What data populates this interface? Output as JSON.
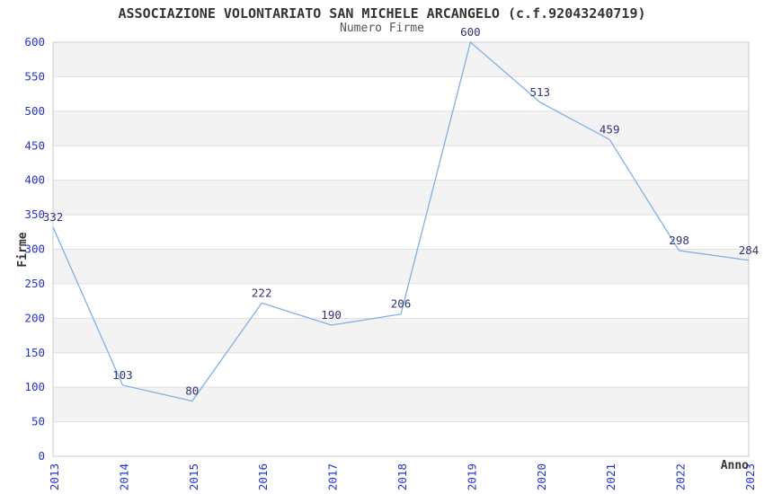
{
  "header": {
    "title": "ASSOCIAZIONE VOLONTARIATO SAN MICHELE ARCANGELO (c.f.92043240719)",
    "subtitle": "Numero Firme"
  },
  "chart_data": {
    "type": "line",
    "title": "ASSOCIAZIONE VOLONTARIATO SAN MICHELE ARCANGELO (c.f.92043240719)",
    "subtitle": "Numero Firme",
    "xlabel": "Anno",
    "ylabel": "Firme",
    "categories": [
      "2013",
      "2014",
      "2015",
      "2016",
      "2017",
      "2018",
      "2019",
      "2020",
      "2021",
      "2022",
      "2023"
    ],
    "values": [
      332,
      103,
      80,
      222,
      190,
      206,
      600,
      513,
      459,
      298,
      284
    ],
    "ylim": [
      0,
      600
    ],
    "ytick_step": 50,
    "grid": true,
    "legend": false,
    "point_labels": true,
    "x_tick_rotation": 90,
    "colors": {
      "line": "#7fb0e5",
      "tick_label": "#2233cc",
      "data_label": "#333377",
      "band_alt": "#f3f3f3",
      "band": "#ffffff",
      "grid": "#e0e0e0",
      "border": "#c9c9c9",
      "title": "#333333",
      "subtitle": "#555555",
      "axis_title": "#333333"
    }
  }
}
